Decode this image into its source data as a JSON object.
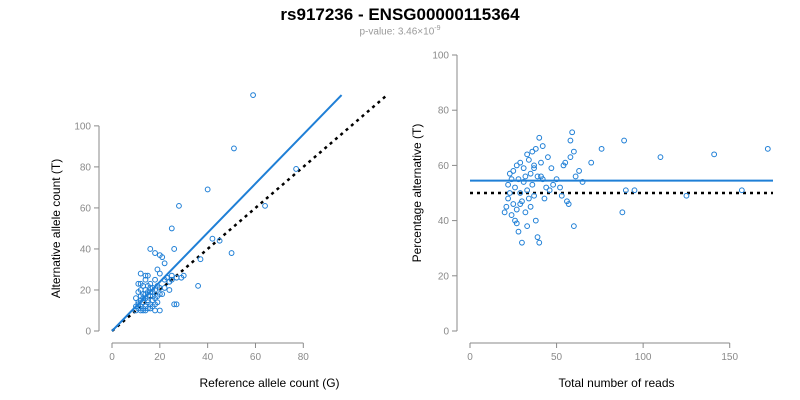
{
  "title": "rs917236 - ENSG00000115364",
  "subtitle": {
    "prefix": "p-value: 3.46×10",
    "exponent": "-9"
  },
  "colors": {
    "points": "#1f7fd6",
    "fit_line": "#1f7fd6",
    "reference_line": "#000000",
    "axis": "#8a8a8a"
  },
  "chart_data": [
    {
      "type": "scatter",
      "title": "",
      "xlabel": "Reference allele count (G)",
      "ylabel": "Alternative allele count (T)",
      "xlim": [
        0,
        115
      ],
      "ylim": [
        0,
        117
      ],
      "xticks": [
        0,
        20,
        40,
        60,
        80
      ],
      "yticks": [
        0,
        20,
        40,
        60,
        80,
        100
      ],
      "grid": false,
      "points": [
        [
          10,
          10
        ],
        [
          10,
          12
        ],
        [
          11,
          11
        ],
        [
          11,
          13
        ],
        [
          12,
          12
        ],
        [
          12,
          15
        ],
        [
          13,
          10
        ],
        [
          13,
          14
        ],
        [
          13,
          16
        ],
        [
          14,
          12
        ],
        [
          14,
          18
        ],
        [
          15,
          15
        ],
        [
          15,
          11
        ],
        [
          16,
          13
        ],
        [
          16,
          17
        ],
        [
          17,
          12
        ],
        [
          17,
          19
        ],
        [
          18,
          16
        ],
        [
          19,
          14
        ],
        [
          20,
          18
        ],
        [
          10,
          16
        ],
        [
          11,
          19
        ],
        [
          12,
          20
        ],
        [
          12,
          23
        ],
        [
          13,
          22
        ],
        [
          14,
          25
        ],
        [
          15,
          27
        ],
        [
          16,
          23
        ],
        [
          17,
          21
        ],
        [
          18,
          25
        ],
        [
          19,
          30
        ],
        [
          20,
          28
        ],
        [
          21,
          36
        ],
        [
          22,
          33
        ],
        [
          23,
          26
        ],
        [
          24,
          24
        ],
        [
          25,
          25
        ],
        [
          26,
          13
        ],
        [
          27,
          26
        ],
        [
          28,
          61
        ],
        [
          30,
          27
        ],
        [
          18,
          38
        ],
        [
          20,
          37
        ],
        [
          16,
          40
        ],
        [
          25,
          50
        ],
        [
          26,
          40
        ],
        [
          29,
          26
        ],
        [
          11,
          23
        ],
        [
          12,
          28
        ],
        [
          14,
          27
        ],
        [
          15,
          14
        ],
        [
          16,
          19
        ],
        [
          18,
          13
        ],
        [
          20,
          10
        ],
        [
          22,
          25
        ],
        [
          23,
          26
        ],
        [
          24,
          20
        ],
        [
          14,
          20
        ],
        [
          15,
          22
        ],
        [
          17,
          17
        ],
        [
          13,
          11
        ],
        [
          12,
          17
        ],
        [
          15,
          19
        ],
        [
          19,
          22
        ],
        [
          21,
          18
        ],
        [
          17,
          15
        ],
        [
          18,
          20
        ],
        [
          20,
          21
        ],
        [
          16,
          21
        ],
        [
          14,
          16
        ],
        [
          36,
          22
        ],
        [
          37,
          35
        ],
        [
          40,
          69
        ],
        [
          42,
          45
        ],
        [
          45,
          44
        ],
        [
          50,
          38
        ],
        [
          51,
          89
        ],
        [
          59,
          115
        ],
        [
          64,
          61
        ],
        [
          77,
          79
        ],
        [
          19,
          17
        ],
        [
          22,
          21
        ],
        [
          25,
          27
        ],
        [
          27,
          13
        ],
        [
          11,
          14
        ],
        [
          12,
          10
        ],
        [
          13,
          18
        ],
        [
          14,
          10
        ],
        [
          16,
          11
        ],
        [
          18,
          10
        ]
      ],
      "fit_line": [
        [
          0,
          0
        ],
        [
          96,
          115
        ]
      ],
      "reference_line": [
        [
          0,
          0
        ],
        [
          115,
          115
        ]
      ]
    },
    {
      "type": "scatter",
      "title": "",
      "xlabel": "Total number of reads",
      "ylabel": "Percentage alternative (T)",
      "xlim": [
        0,
        175
      ],
      "ylim": [
        0,
        100
      ],
      "xticks": [
        0,
        50,
        100,
        150
      ],
      "yticks": [
        0,
        20,
        40,
        60,
        80,
        100
      ],
      "grid": false,
      "points": [
        [
          20,
          43
        ],
        [
          21,
          45
        ],
        [
          22,
          48
        ],
        [
          22,
          53
        ],
        [
          23,
          50
        ],
        [
          24,
          55
        ],
        [
          24,
          42
        ],
        [
          25,
          58
        ],
        [
          25,
          46
        ],
        [
          26,
          40
        ],
        [
          26,
          52
        ],
        [
          27,
          60
        ],
        [
          27,
          44
        ],
        [
          28,
          36
        ],
        [
          28,
          55
        ],
        [
          29,
          50
        ],
        [
          29,
          61
        ],
        [
          30,
          32
        ],
        [
          30,
          47
        ],
        [
          31,
          54
        ],
        [
          31,
          59
        ],
        [
          32,
          43
        ],
        [
          32,
          56
        ],
        [
          33,
          38
        ],
        [
          33,
          51
        ],
        [
          34,
          62
        ],
        [
          34,
          48
        ],
        [
          35,
          57
        ],
        [
          35,
          45
        ],
        [
          36,
          65
        ],
        [
          36,
          53
        ],
        [
          37,
          49
        ],
        [
          37,
          59
        ],
        [
          38,
          66
        ],
        [
          38,
          40
        ],
        [
          39,
          34
        ],
        [
          39,
          56
        ],
        [
          40,
          32
        ],
        [
          40,
          70
        ],
        [
          41,
          61
        ],
        [
          42,
          55
        ],
        [
          42,
          67
        ],
        [
          43,
          48
        ],
        [
          44,
          52
        ],
        [
          45,
          63
        ],
        [
          46,
          51
        ],
        [
          47,
          59
        ],
        [
          48,
          53
        ],
        [
          50,
          55
        ],
        [
          52,
          52
        ],
        [
          53,
          49
        ],
        [
          54,
          60
        ],
        [
          55,
          61
        ],
        [
          56,
          47
        ],
        [
          57,
          46
        ],
        [
          58,
          63
        ],
        [
          58,
          69
        ],
        [
          59,
          72
        ],
        [
          60,
          38
        ],
        [
          60,
          65
        ],
        [
          61,
          56
        ],
        [
          63,
          58
        ],
        [
          65,
          54
        ],
        [
          70,
          61
        ],
        [
          76,
          66
        ],
        [
          88,
          43
        ],
        [
          89,
          69
        ],
        [
          90,
          51
        ],
        [
          95,
          51
        ],
        [
          110,
          63
        ],
        [
          125,
          49
        ],
        [
          141,
          64
        ],
        [
          157,
          51
        ],
        [
          172,
          66
        ],
        [
          23,
          57
        ],
        [
          27,
          39
        ],
        [
          29,
          46
        ],
        [
          33,
          64
        ],
        [
          37,
          60
        ],
        [
          41,
          56
        ]
      ],
      "fit_line": [
        [
          0,
          54.5
        ],
        [
          175,
          54.5
        ]
      ],
      "reference_line": [
        [
          0,
          50
        ],
        [
          175,
          50
        ]
      ]
    }
  ]
}
